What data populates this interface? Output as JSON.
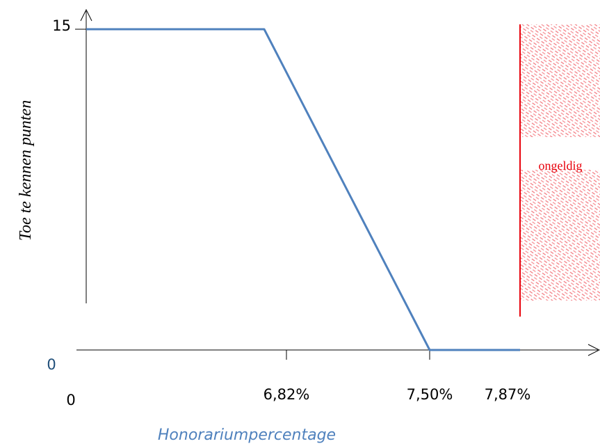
{
  "chart_data": {
    "type": "line",
    "title": "",
    "xlabel": "Honorariumpercentage",
    "ylabel": "Toe te kennen punten",
    "y_tick_top": "15",
    "y_tick_zero": "0",
    "x_tick_origin": "0",
    "x_tick_labels": [
      "6,82%",
      "7,50%",
      "7,87%"
    ],
    "series": [
      {
        "x": [
          0,
          6.82,
          7.5,
          7.87
        ],
        "y": [
          15,
          15,
          0,
          0
        ],
        "color": "#4f81bd"
      }
    ],
    "invalid_region": {
      "from_x": 7.87,
      "label": "ongeldig",
      "color": "#e8000b"
    },
    "grid": false,
    "legend": "none"
  }
}
